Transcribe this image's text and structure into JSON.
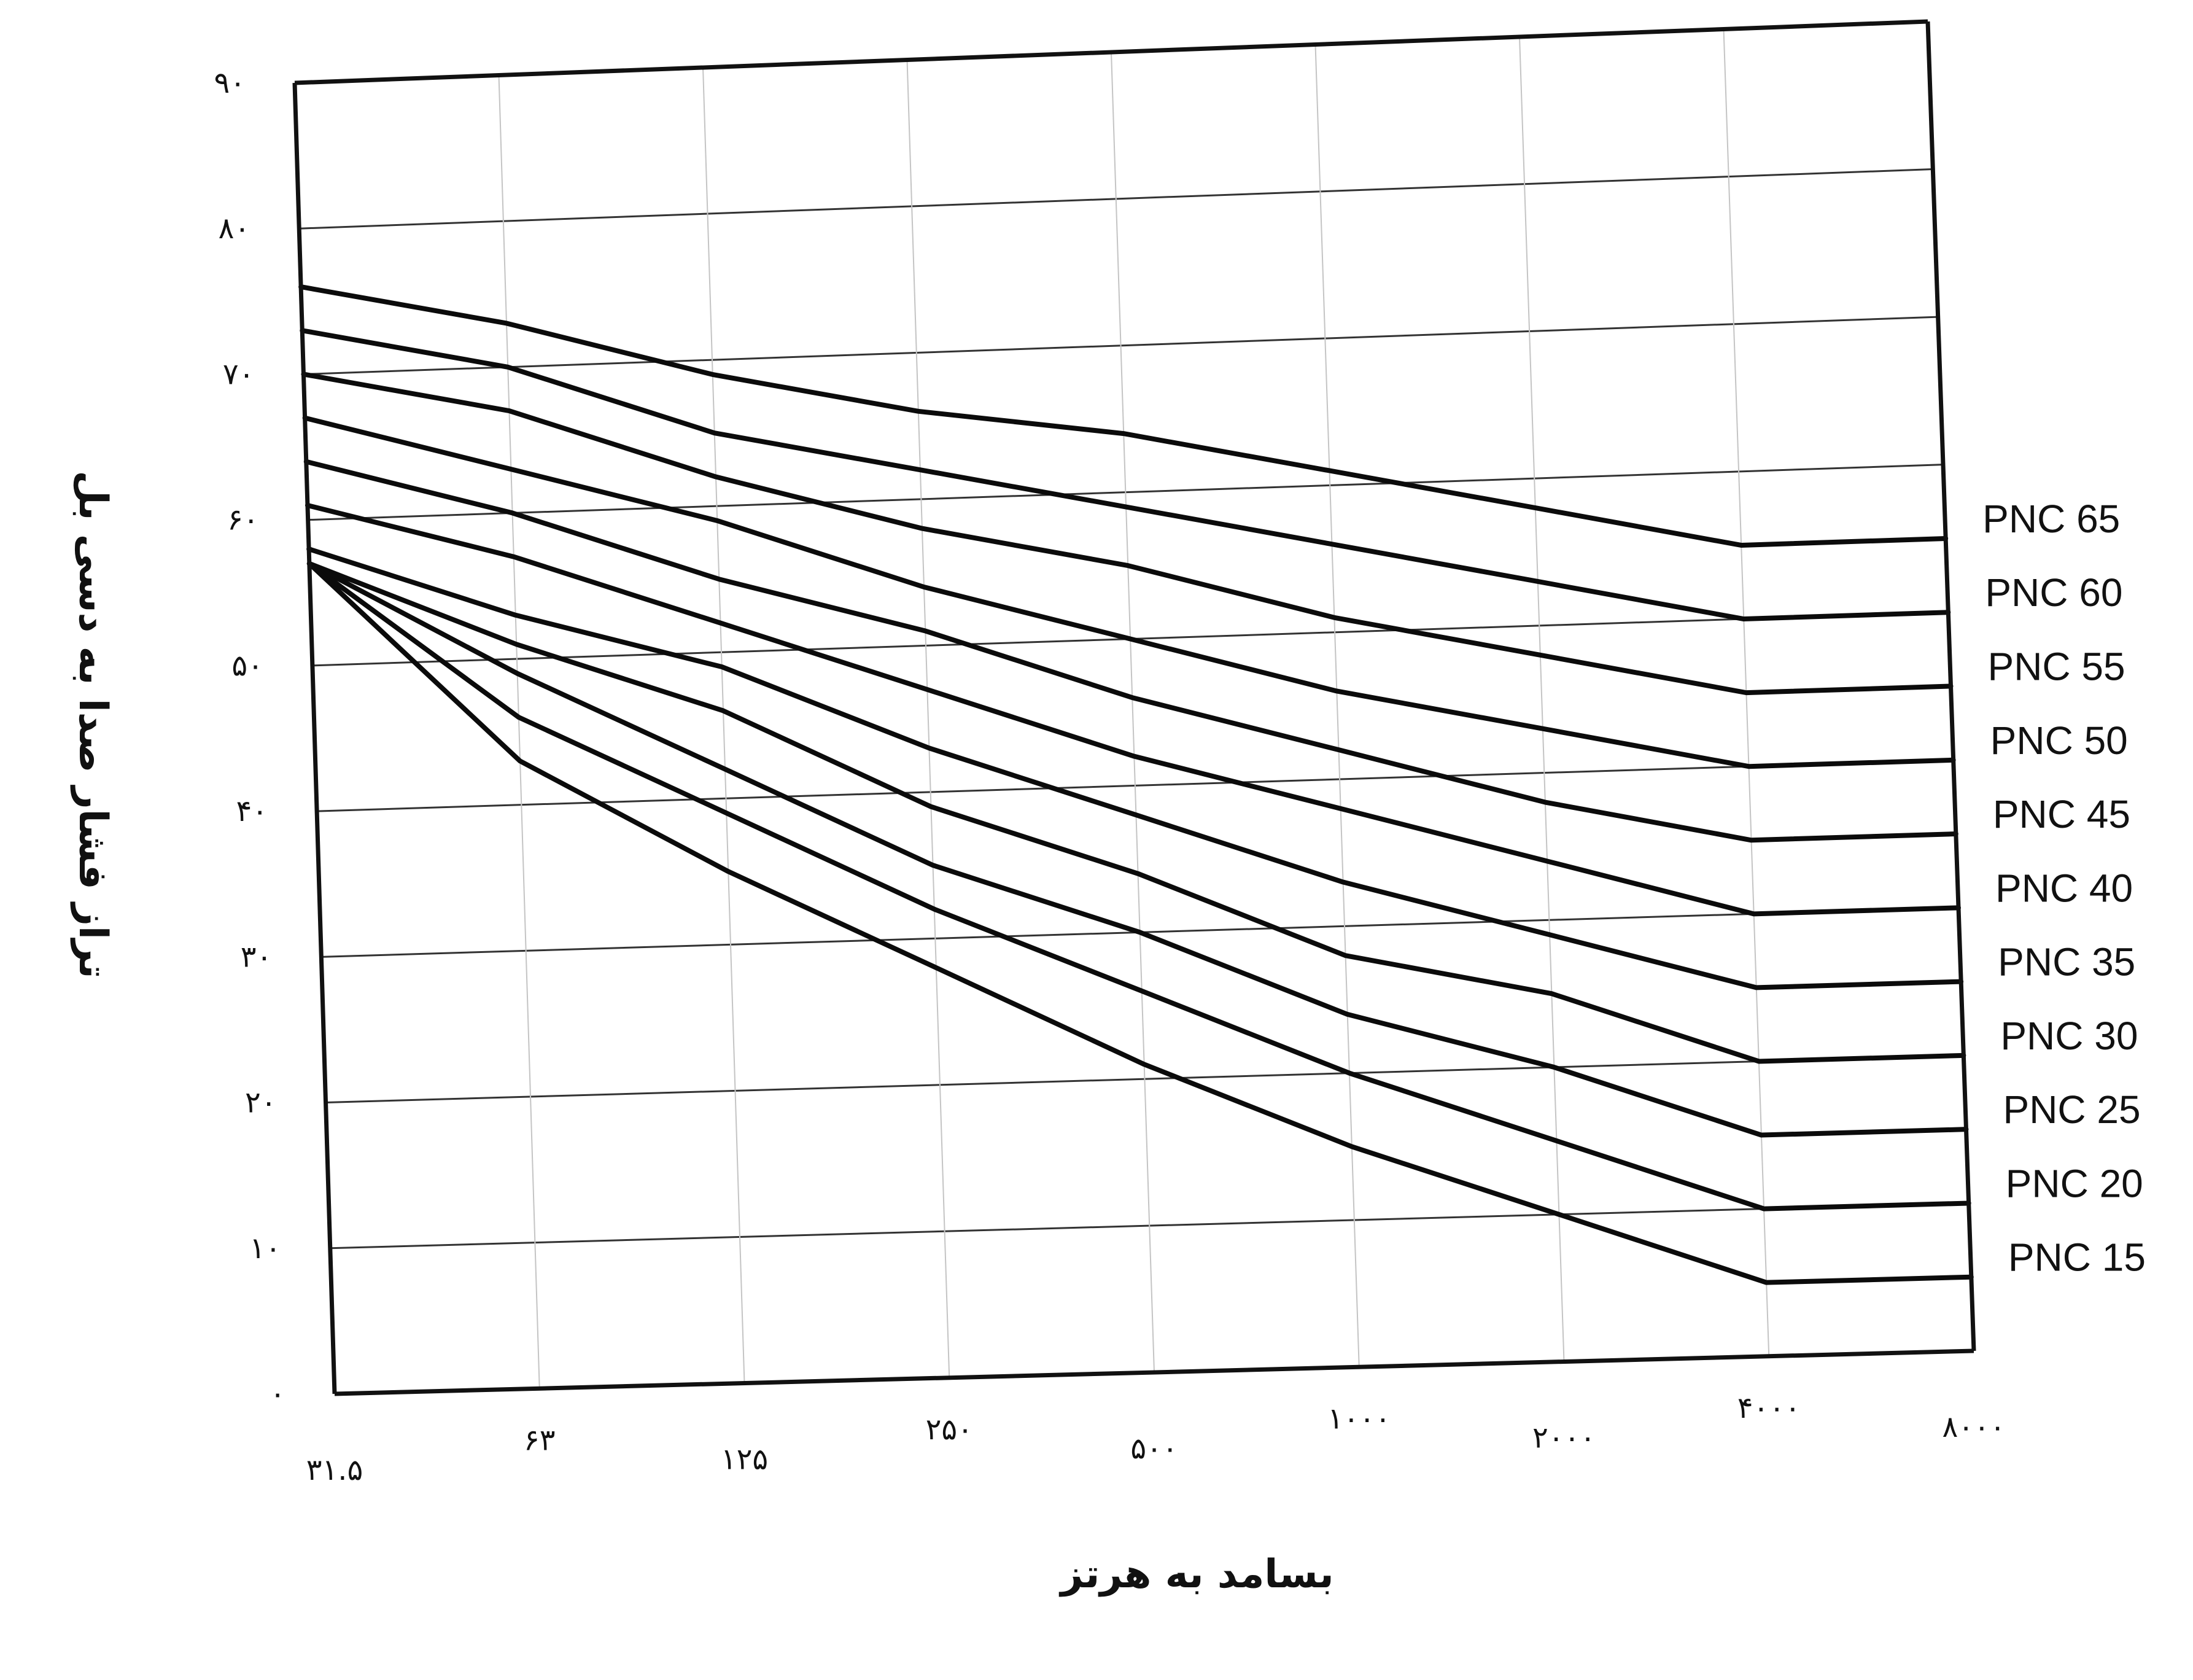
{
  "chart_data": {
    "type": "line",
    "xlabel": "بسامد به هرتز",
    "ylabel": "تراز فشار صدا به دسی بل",
    "categories": [
      "۳۱.۵",
      "۶۳",
      "۱۲۵",
      "۲۵۰",
      "۵۰۰",
      "۱۰۰۰",
      "۲۰۰۰",
      "۴۰۰۰",
      "۸۰۰۰"
    ],
    "yticks": [
      {
        "value": 0,
        "label": "۰"
      },
      {
        "value": 10,
        "label": "۱۰"
      },
      {
        "value": 20,
        "label": "۲۰"
      },
      {
        "value": 30,
        "label": "۳۰"
      },
      {
        "value": 40,
        "label": "۴۰"
      },
      {
        "value": 50,
        "label": "۵۰"
      },
      {
        "value": 60,
        "label": "۶۰"
      },
      {
        "value": 70,
        "label": "۷۰"
      },
      {
        "value": 80,
        "label": "۸۰"
      },
      {
        "value": 90,
        "label": "۹۰"
      }
    ],
    "ylim": [
      0,
      90
    ],
    "grid": true,
    "series": [
      {
        "name": "PNC 65",
        "values": [
          76,
          73,
          69,
          66,
          64,
          61,
          58,
          55,
          55
        ]
      },
      {
        "name": "PNC 60",
        "values": [
          73,
          70,
          65,
          62,
          59,
          56,
          53,
          50,
          50
        ]
      },
      {
        "name": "PNC 55",
        "values": [
          70,
          67,
          62,
          58,
          55,
          51,
          48,
          45,
          45
        ]
      },
      {
        "name": "PNC 50",
        "values": [
          67,
          63,
          59,
          54,
          50,
          46,
          43,
          40,
          40
        ]
      },
      {
        "name": "PNC 45",
        "values": [
          64,
          60,
          55,
          51,
          46,
          42,
          38,
          35,
          35
        ]
      },
      {
        "name": "PNC 40",
        "values": [
          61,
          57,
          52,
          47,
          42,
          38,
          34,
          30,
          30
        ]
      },
      {
        "name": "PNC 35",
        "values": [
          58,
          53,
          49,
          43,
          38,
          33,
          29,
          25,
          25
        ]
      },
      {
        "name": "PNC 30",
        "values": [
          57,
          51,
          46,
          39,
          34,
          28,
          25,
          20,
          20
        ]
      },
      {
        "name": "PNC 25",
        "values": [
          57,
          49,
          42,
          35,
          30,
          24,
          20,
          15,
          15
        ]
      },
      {
        "name": "PNC 20",
        "values": [
          57,
          46,
          39,
          32,
          26,
          20,
          15,
          10,
          10
        ]
      },
      {
        "name": "PNC 15",
        "values": [
          57,
          43,
          35,
          28,
          21,
          15,
          10,
          5,
          5
        ]
      }
    ]
  }
}
